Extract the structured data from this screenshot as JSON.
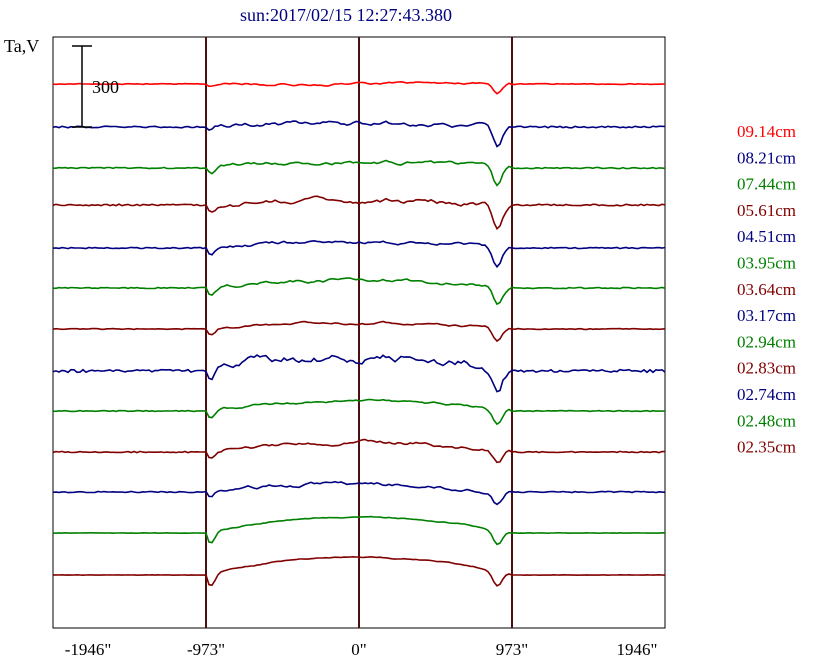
{
  "chart_data": {
    "type": "line",
    "title": "sun:2017/02/15 12:27:43.380",
    "ylabel": "Ta,V",
    "scale_bar_label": "300",
    "x_ticks": [
      {
        "value": -1946,
        "label": "-1946\""
      },
      {
        "value": -973,
        "label": "-973\""
      },
      {
        "value": 0,
        "label": "0\""
      },
      {
        "value": 973,
        "label": "973\""
      },
      {
        "value": 1946,
        "label": "1946\""
      }
    ],
    "xlim": [
      -1946,
      1946
    ],
    "vertical_lines": [
      -973,
      0,
      973
    ],
    "legend_placement": "right",
    "colors": {
      "red": "#ff0000",
      "blue": "#000080",
      "green": "#008000",
      "maroon": "#800000",
      "axis": "#000000",
      "title": "#000080"
    },
    "series": [
      {
        "name": "09.14cm",
        "color": "#ff0000"
      },
      {
        "name": "08.21cm",
        "color": "#000080"
      },
      {
        "name": "07.44cm",
        "color": "#008000"
      },
      {
        "name": "05.61cm",
        "color": "#800000"
      },
      {
        "name": "04.51cm",
        "color": "#000080"
      },
      {
        "name": "03.95cm",
        "color": "#008000"
      },
      {
        "name": "03.64cm",
        "color": "#800000"
      },
      {
        "name": "03.17cm",
        "color": "#000080"
      },
      {
        "name": "02.94cm",
        "color": "#008000"
      },
      {
        "name": "02.83cm",
        "color": "#800000"
      },
      {
        "name": "02.74cm",
        "color": "#000080"
      },
      {
        "name": "02.48cm",
        "color": "#008000"
      },
      {
        "name": "02.35cm",
        "color": "#800000"
      }
    ]
  }
}
